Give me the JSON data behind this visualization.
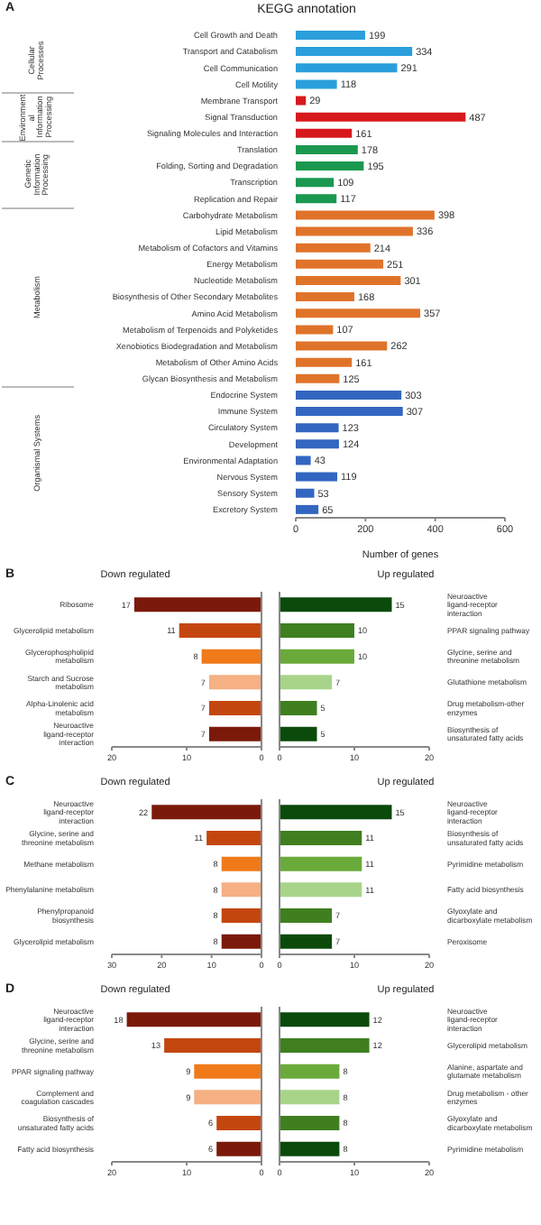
{
  "chart_data": [
    {
      "type": "bar",
      "orientation": "horizontal",
      "title": "KEGG annotation",
      "xlabel": "Number of genes",
      "annotations": [
        "A",
        "Cellular Processes",
        "Environmental Information Processing",
        "Genetic Information Processing",
        "Metabolism",
        "Organismal Systems"
      ],
      "categories": [
        "Cell Growth and Death",
        "Transport and Catabolism",
        "Cell Communication",
        "Cell Motility",
        "Membrane Transport",
        "Signal Transduction",
        "Signaling Molecules and Interaction",
        "Translation",
        "Folding, Sorting and Degradation",
        "Transcription",
        "Replication and Repair",
        "Carbohydrate Metabolism",
        "Lipid Metabolism",
        "Metabolism of Cofactors and Vitamins",
        "Energy Metabolism",
        "Nucleotide Metabolism",
        "Biosynthesis of Other Secondary Metabolites",
        "Amino Acid Metabolism",
        "Metabolism of Terpenoids and Polyketides",
        "Xenobiotics Biodegradation and Metabolism",
        "Metabolism of Other Amino Acids",
        "Glycan Biosynthesis and Metabolism",
        "Endocrine System",
        "Immune System",
        "Circulatory System",
        "Development",
        "Environmental Adaptation",
        "Nervous System",
        "Sensory System",
        "Excretory System"
      ],
      "values": [
        199,
        334,
        291,
        118,
        29,
        487,
        161,
        178,
        195,
        109,
        117,
        398,
        336,
        214,
        251,
        301,
        168,
        357,
        107,
        262,
        161,
        125,
        303,
        307,
        123,
        124,
        43,
        119,
        53,
        65
      ],
      "colors": [
        "#2a9fdc",
        "#2a9fdc",
        "#2a9fdc",
        "#2a9fdc",
        "#d7191c",
        "#d7191c",
        "#d7191c",
        "#1a9850",
        "#1a9850",
        "#1a9850",
        "#1a9850",
        "#e0732a",
        "#e0732a",
        "#e0732a",
        "#e0732a",
        "#e0732a",
        "#e0732a",
        "#e0732a",
        "#e0732a",
        "#e0732a",
        "#e0732a",
        "#e0732a",
        "#3366c0",
        "#3366c0",
        "#3366c0",
        "#3366c0",
        "#3366c0",
        "#3366c0",
        "#3366c0",
        "#3366c0"
      ],
      "xlim": [
        0,
        600
      ],
      "xticks": [
        0,
        200,
        400,
        600
      ],
      "data_labels": true
    },
    {
      "type": "bar",
      "orientation": "horizontal",
      "title": "Down regulated",
      "annotations": [
        "B"
      ],
      "categories": [
        "Ribosome",
        "Glycerolipid metabolism",
        "Glycerophospholipid metabolism",
        "Starch and Sucrose metabolism",
        "Alpha-Linolenic acid metabolism",
        "Neuroactive ligand-receptor interaction"
      ],
      "values": [
        17,
        11,
        8,
        7,
        7,
        7
      ],
      "colors": [
        "#7b1a0a",
        "#c4460f",
        "#f07a1a",
        "#f5b083",
        "#c4460f",
        "#7b1a0a"
      ],
      "xlim": [
        20,
        0
      ],
      "xticks": [
        20,
        10,
        0
      ],
      "data_labels": true
    },
    {
      "type": "bar",
      "orientation": "horizontal",
      "title": "Up regulated",
      "categories": [
        "Neuroactive ligand-receptor interaction",
        "PPAR signaling pathway",
        "Glycine, serine and threonine metabolism",
        "Glutathione metabolism",
        "Drug metabolism-other enzymes",
        "Biosynthesis of unsaturated fatty acids"
      ],
      "values": [
        15,
        10,
        10,
        7,
        5,
        5
      ],
      "colors": [
        "#0b4a0b",
        "#3f7f1f",
        "#6aaa3a",
        "#a8d48a",
        "#3f7f1f",
        "#0b4a0b"
      ],
      "xlim": [
        0,
        20
      ],
      "xticks": [
        0,
        10,
        20
      ],
      "data_labels": true
    },
    {
      "type": "bar",
      "orientation": "horizontal",
      "title": "Down regulated",
      "annotations": [
        "C"
      ],
      "categories": [
        "Neuroactive ligand-receptor interaction",
        "Glycine, serine and threonine metabolism",
        "Methane metabolism",
        "Phenylalanine metabolism",
        "Phenylpropanoid biosynthesis",
        "Glycerolipid metabolism"
      ],
      "values": [
        22,
        11,
        8,
        8,
        8,
        8
      ],
      "colors": [
        "#7b1a0a",
        "#c4460f",
        "#f07a1a",
        "#f5b083",
        "#c4460f",
        "#7b1a0a"
      ],
      "xlim": [
        30,
        0
      ],
      "xticks": [
        30,
        20,
        10,
        0
      ],
      "data_labels": true
    },
    {
      "type": "bar",
      "orientation": "horizontal",
      "title": "Up regulated",
      "categories": [
        "Neuroactive ligand-receptor interaction",
        "Biosynthesis of unsaturated fatty acids",
        "Pyrimidine metabolism",
        "Fatty acid biosynthesis",
        "Glyoxylate and dicarboxylate metabolism",
        "Peroxisome"
      ],
      "values": [
        15,
        11,
        11,
        11,
        7,
        7
      ],
      "colors": [
        "#0b4a0b",
        "#3f7f1f",
        "#6aaa3a",
        "#a8d48a",
        "#3f7f1f",
        "#0b4a0b"
      ],
      "xlim": [
        0,
        20
      ],
      "xticks": [
        0,
        10,
        20
      ],
      "data_labels": true
    },
    {
      "type": "bar",
      "orientation": "horizontal",
      "title": "Down regulated",
      "annotations": [
        "D"
      ],
      "categories": [
        "Neuroactive ligand-receptor interaction",
        "Glycine, serine and threonine metabolism",
        "PPAR signaling pathway",
        "Complement and coagulation cascades",
        "Biosynthesis of unsaturated fatty acids",
        "Fatty acid biosynthesis"
      ],
      "values": [
        18,
        13,
        9,
        9,
        6,
        6
      ],
      "colors": [
        "#7b1a0a",
        "#c4460f",
        "#f07a1a",
        "#f5b083",
        "#c4460f",
        "#7b1a0a"
      ],
      "xlim": [
        20,
        0
      ],
      "xticks": [
        20,
        10,
        0
      ],
      "data_labels": true
    },
    {
      "type": "bar",
      "orientation": "horizontal",
      "title": "Up regulated",
      "categories": [
        "Neuroactive ligand-receptor interaction",
        "Glycerolipid metabolism",
        "Alanine, aspartate and glutamate metabolism",
        "Drug metabolism - other enzymes",
        "Glyoxylate and dicarboxylate metabolism",
        "Pyrimidine metabolism"
      ],
      "values": [
        12,
        12,
        8,
        8,
        8,
        8
      ],
      "colors": [
        "#0b4a0b",
        "#3f7f1f",
        "#6aaa3a",
        "#a8d48a",
        "#3f7f1f",
        "#0b4a0b"
      ],
      "xlim": [
        0,
        20
      ],
      "xticks": [
        0,
        10,
        20
      ],
      "data_labels": true
    }
  ]
}
